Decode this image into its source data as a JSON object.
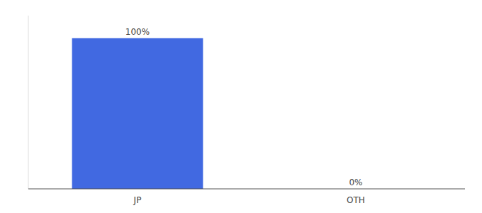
{
  "chart_data": {
    "type": "bar",
    "categories": [
      "JP",
      "OTH"
    ],
    "values": [
      100,
      0
    ],
    "value_labels": [
      "100%",
      "0%"
    ],
    "color": "#4169e1",
    "ylim": [
      0,
      115
    ],
    "data_labels": true,
    "tick_labels": "x"
  }
}
